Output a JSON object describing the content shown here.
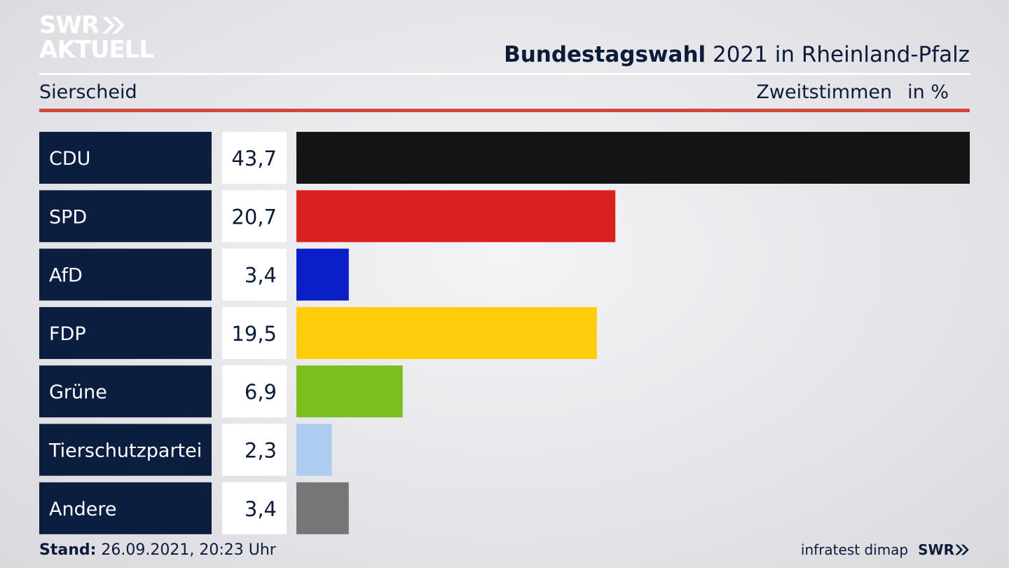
{
  "header": {
    "logo_line1": "SWR",
    "logo_line2": "AKTUELL",
    "title_bold": "Bundestagswahl",
    "title_rest": " 2021 in Rheinland-Pfalz",
    "region": "Sierscheid",
    "measure": "Zweitstimmen",
    "unit": "in %"
  },
  "footer": {
    "stand_label": "Stand:",
    "stand_value": " 26.09.2021, 20:23 Uhr",
    "source": "infratest dimap",
    "brand": "SWR"
  },
  "colors": {
    "label_bg": "#0c1e3f",
    "value_bg": "#ffffff",
    "accent_rule": "#d4453a"
  },
  "chart_data": {
    "type": "bar",
    "orientation": "horizontal",
    "categories": [
      "CDU",
      "SPD",
      "AfD",
      "FDP",
      "Grüne",
      "Tierschutzpartei",
      "Andere"
    ],
    "values": [
      43.7,
      20.7,
      3.4,
      19.5,
      6.9,
      2.3,
      3.4
    ],
    "value_labels": [
      "43,7",
      "20,7",
      "3,4",
      "19,5",
      "6,9",
      "2,3",
      "3,4"
    ],
    "colors": [
      "#141414",
      "#d92121",
      "#0a1fc7",
      "#fdcc0a",
      "#7abf1d",
      "#aecbf0",
      "#767676"
    ],
    "xlim": [
      0,
      43.7
    ]
  }
}
